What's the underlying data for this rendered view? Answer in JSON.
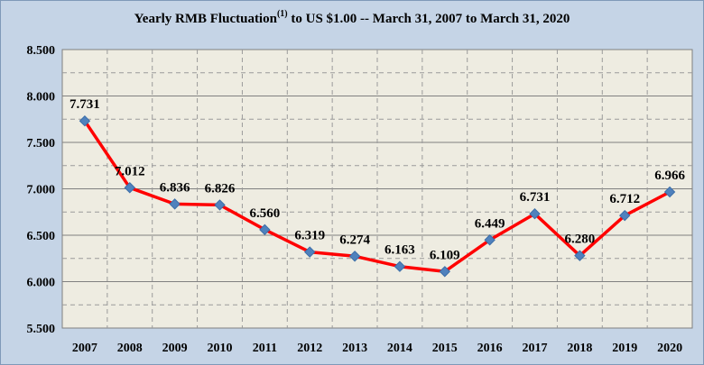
{
  "chart_data": {
    "type": "line",
    "title": "Yearly RMB Fluctuation",
    "title_superscript": "(1)",
    "title_rest": " to US $1.00 -- March 31, 2007 to March 31, 2020",
    "x": [
      "2007",
      "2008",
      "2009",
      "2010",
      "2011",
      "2012",
      "2013",
      "2014",
      "2015",
      "2016",
      "2017",
      "2018",
      "2019",
      "2020"
    ],
    "series": [
      {
        "values": [
          7.731,
          7.012,
          6.836,
          6.826,
          6.56,
          6.319,
          6.274,
          6.163,
          6.109,
          6.449,
          6.731,
          6.28,
          6.712,
          6.966
        ],
        "labels": [
          "7.731",
          "7.012",
          "6.836",
          "6.826",
          "6.560",
          "6.319",
          "6.274",
          "6.163",
          "6.109",
          "6.449",
          "6.731",
          "6.280",
          "6.712",
          "6.966"
        ]
      }
    ],
    "ylim": [
      5.5,
      8.5
    ],
    "yticks": [
      "5.500",
      "6.000",
      "6.500",
      "7.000",
      "7.500",
      "8.000",
      "8.500"
    ],
    "grid": "solid major, dashed minor",
    "legend": "none",
    "colors": {
      "line": "#ff0000",
      "marker": "#4f81bd",
      "plot_bg": "#eeece1",
      "chart_bg": "#c5d4e6"
    }
  }
}
